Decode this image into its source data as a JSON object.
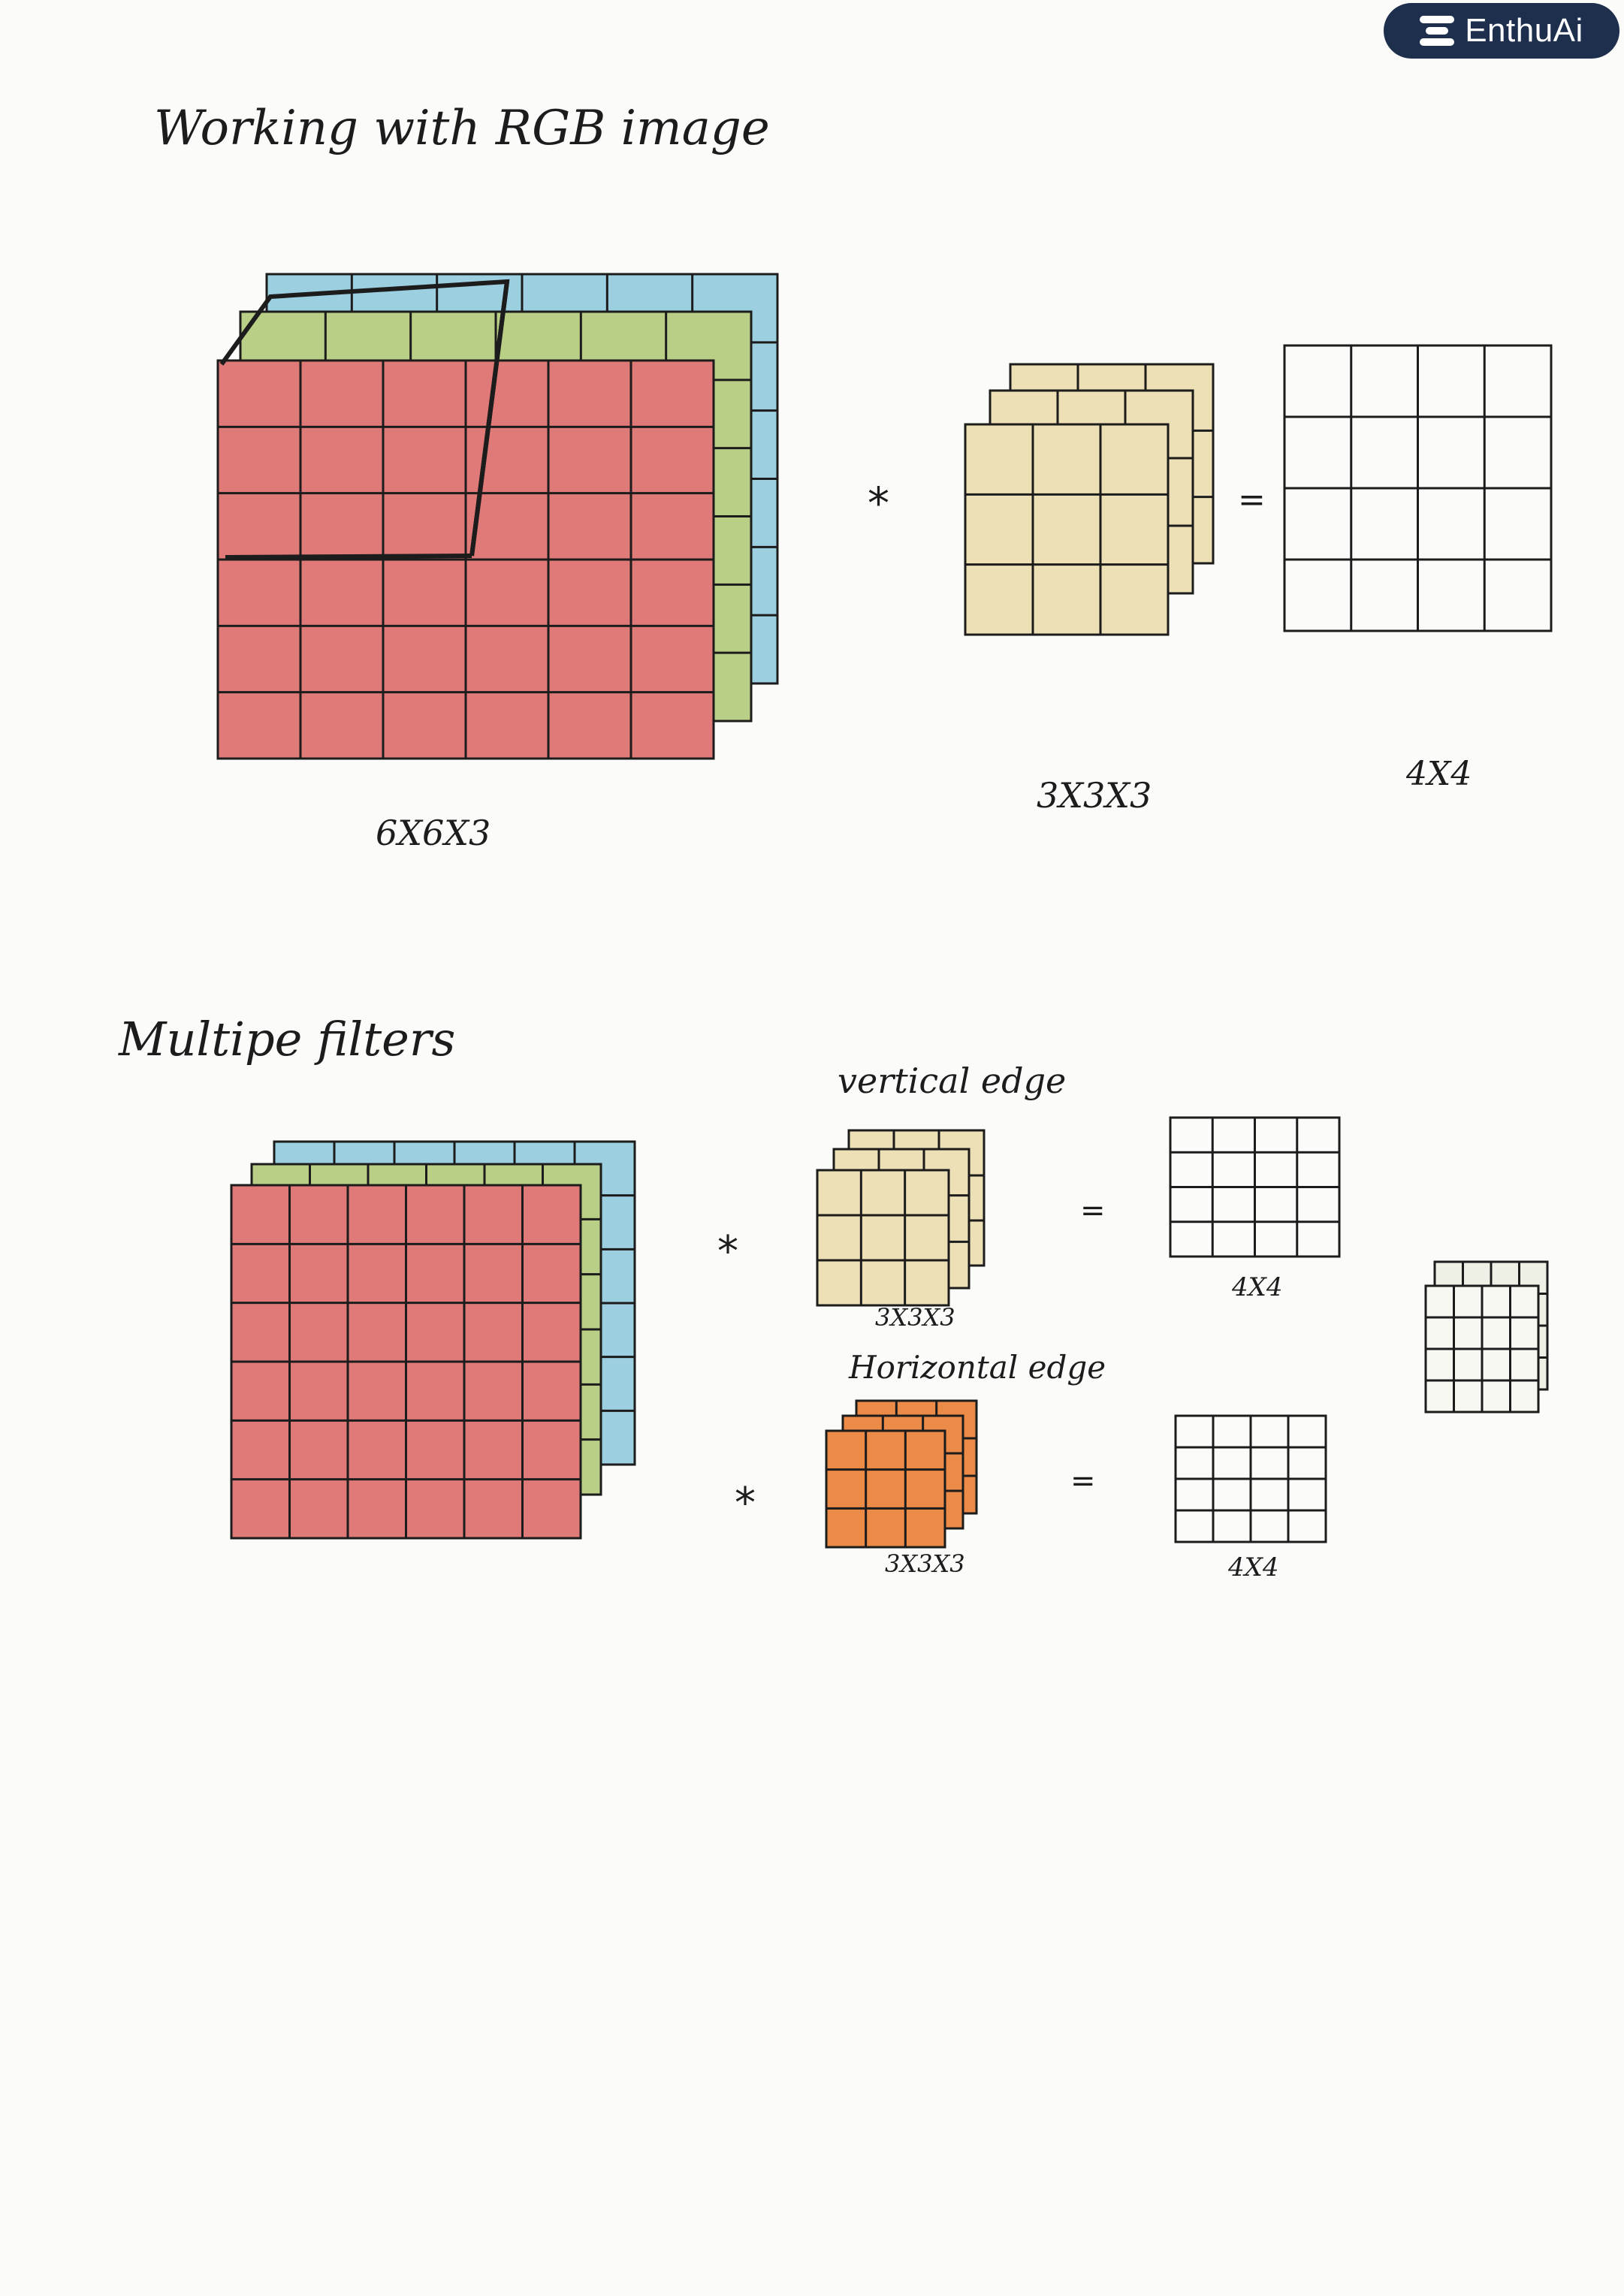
{
  "brand": {
    "name": "EnthuAi",
    "icon": "stacked-lines-logo-icon"
  },
  "colors": {
    "red": "#e07a78",
    "green": "#b9cf86",
    "blue": "#9ccfe0",
    "yellow": "#ede0b6",
    "orange": "#ec8a48",
    "ink": "#1c1c1c",
    "brand_bg": "#1e2f4d"
  },
  "section1": {
    "title": "Working with RGB image",
    "input_label": "6X6X3",
    "filter_label": "3X3X3",
    "output_label": "4X4",
    "operator": "*",
    "equals": "="
  },
  "section2": {
    "title": "Multipe filters",
    "input_label": "",
    "filter1_caption": "vertical edge",
    "filter1_label": "3X3X3",
    "output1_label": "4X4",
    "filter2_caption": "Horizontal edge",
    "filter2_label": "3X3X3",
    "output2_label": "4X4",
    "operator": "*",
    "equals": "="
  }
}
